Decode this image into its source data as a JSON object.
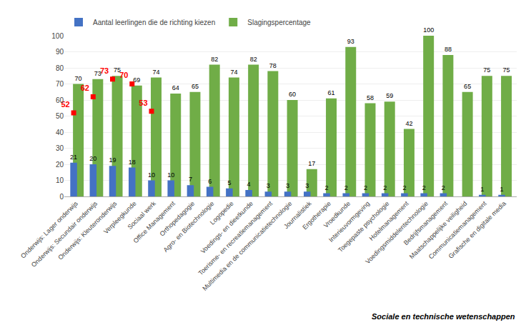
{
  "chart_data": {
    "type": "bar",
    "categories": [
      "Onderwijs: Lager onderwijs",
      "Onderwijs: Secundair onderwijs",
      "Onderwijs: Kleuteronderwijs",
      "Verpleegkunde",
      "Sociaal werk",
      "Office Management",
      "Orthopedagogie",
      "Agro- en Biotechnologie",
      "Logopedie",
      "Voedings- en dieetkunde",
      "Toerisme- en recreatiemanagement",
      "Multimedia en de communicatietechnologie",
      "Journalistiek",
      "Ergotherapie",
      "Vroedkunde",
      "Interieuvormgeving",
      "Toegepaste psychologie",
      "Hotelmanagement",
      "Voedingsmiddelentechnologie",
      "Bedrijfsmanagement",
      "Maatschappelijke veiligheid",
      "Communicatiemanagement",
      "Grafische en digitale media"
    ],
    "series": [
      {
        "name": "Aantal leerlingen die de richting kiezen",
        "color": "#4472C4",
        "values": [
          21,
          20,
          19,
          18,
          10,
          10,
          7,
          6,
          5,
          4,
          3,
          3,
          3,
          2,
          2,
          2,
          2,
          2,
          2,
          2,
          0,
          1,
          1
        ],
        "value_labels": [
          "21",
          "20",
          "19",
          "18",
          "10",
          "10",
          "7",
          "6",
          "5",
          "4",
          "3",
          "3",
          "3",
          "2",
          "2",
          "2",
          "2",
          "2",
          "2",
          "2",
          null,
          "1",
          "1"
        ]
      },
      {
        "name": "Slagingspercentage",
        "color": "#70AD47",
        "values": [
          70,
          73,
          75,
          69,
          74,
          64,
          65,
          82,
          74,
          82,
          78,
          60,
          17,
          61,
          93,
          58,
          59,
          42,
          100,
          88,
          65,
          75,
          75
        ]
      },
      {
        "type": "scatter",
        "marker": "square",
        "color": "#FF0000",
        "values": [
          52,
          62,
          73,
          70,
          53,
          null,
          null,
          null,
          null,
          null,
          null,
          null,
          null,
          null,
          null,
          null,
          null,
          null,
          null,
          null,
          null,
          null,
          null
        ]
      }
    ],
    "ylim": [
      0,
      100
    ],
    "yticks": [
      0,
      10,
      20,
      30,
      40,
      50,
      60,
      70,
      80,
      90,
      100
    ],
    "grid": true,
    "legend": "upper left",
    "data_labels": true,
    "annotations": [
      "Sociale en technische wetenschappen"
    ]
  }
}
